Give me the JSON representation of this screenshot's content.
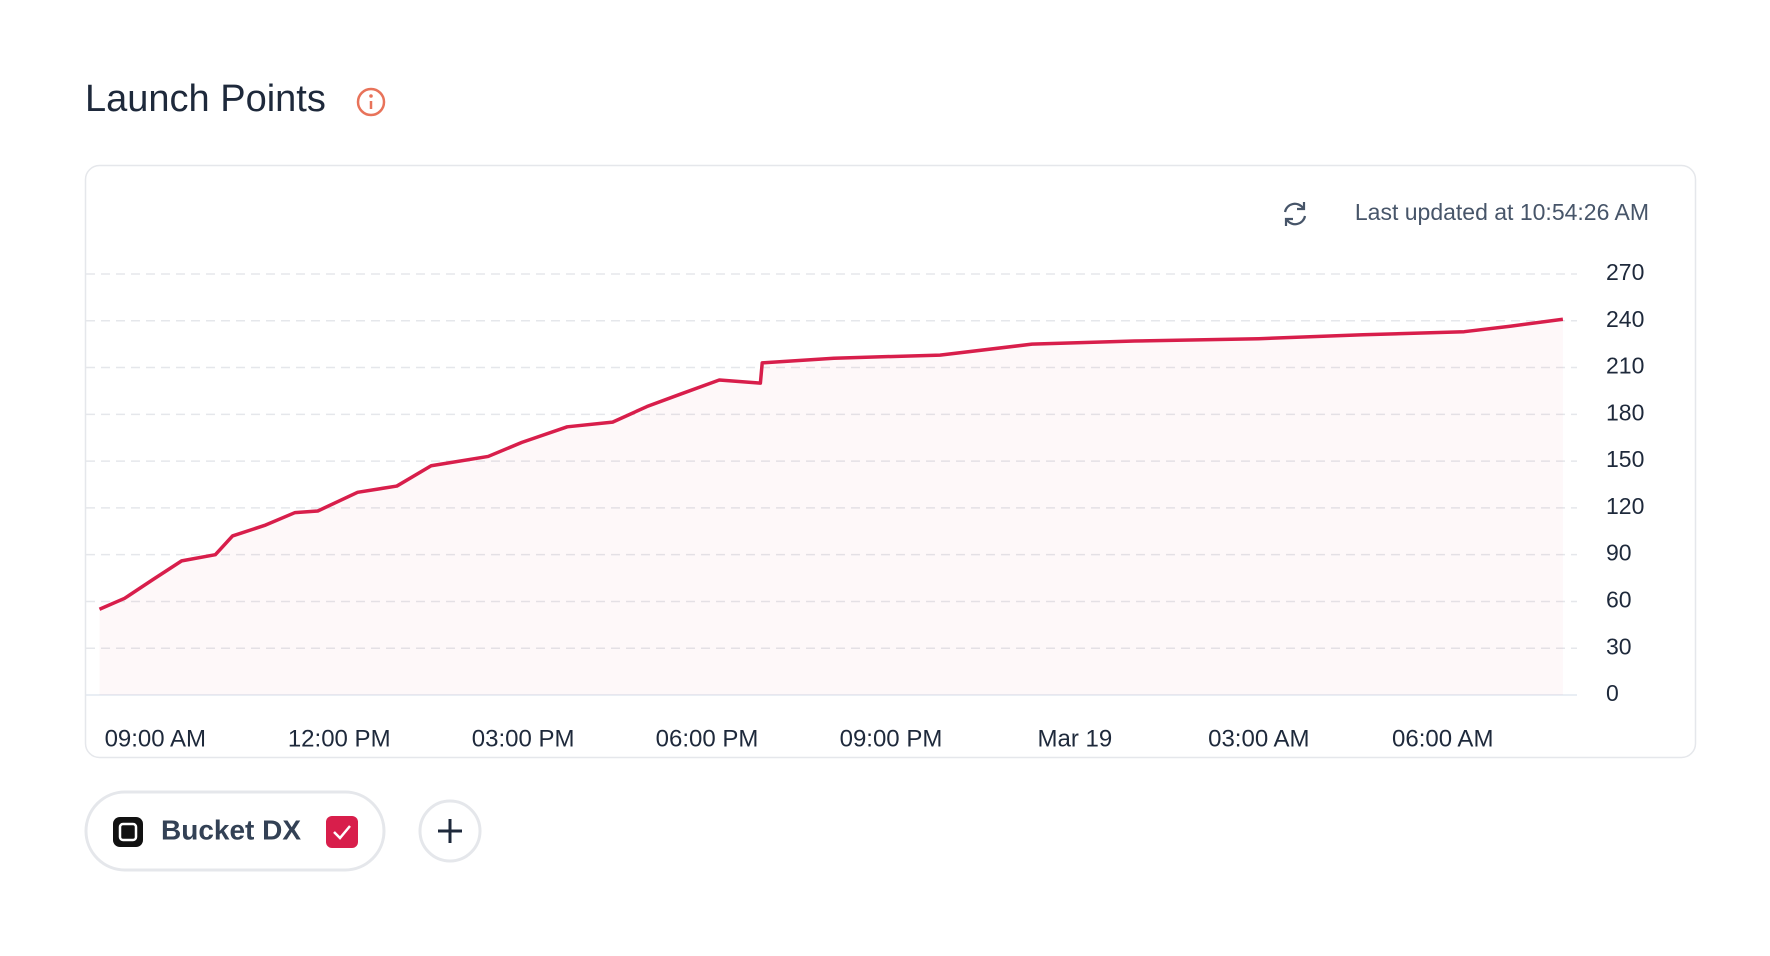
{
  "header": {
    "title": "Launch Points"
  },
  "chart_data": {
    "type": "line",
    "updated": "Last updated at 10:54:26 AM",
    "x": [
      8.09,
      8.5,
      8.96,
      9.43,
      9.98,
      10.26,
      10.8,
      11.28,
      11.65,
      12.3,
      12.94,
      13.5,
      14.43,
      14.98,
      15.72,
      16.46,
      17.02,
      17.57,
      18.2,
      18.87,
      18.9,
      20.07,
      21.8,
      23.3,
      24.97,
      27,
      28.7,
      30.35,
      31.1,
      31.96
    ],
    "series": [
      {
        "name": "Bucket DX",
        "color": "#d81e4b",
        "values": [
          55,
          62,
          74,
          86,
          90,
          102,
          109,
          117,
          118,
          130,
          134,
          147,
          153,
          162,
          172,
          175,
          185,
          193,
          202,
          200,
          213,
          216,
          218,
          225,
          227,
          228.5,
          231,
          233,
          236.5,
          241
        ]
      }
    ],
    "xlim": [
      7.87,
      32.19
    ],
    "xticks": [
      {
        "value": 9,
        "label": "09:00 AM"
      },
      {
        "value": 12,
        "label": "12:00 PM"
      },
      {
        "value": 15,
        "label": "03:00 PM"
      },
      {
        "value": 18,
        "label": "06:00 PM"
      },
      {
        "value": 21,
        "label": "09:00 PM"
      },
      {
        "value": 24,
        "label": "Mar 19"
      },
      {
        "value": 27,
        "label": "03:00 AM"
      },
      {
        "value": 30,
        "label": "06:00 AM"
      }
    ],
    "ylim": [
      0,
      270
    ],
    "yticks": [
      0,
      30,
      60,
      90,
      120,
      150,
      180,
      210,
      240,
      270
    ],
    "grid": true,
    "area": true
  }
}
